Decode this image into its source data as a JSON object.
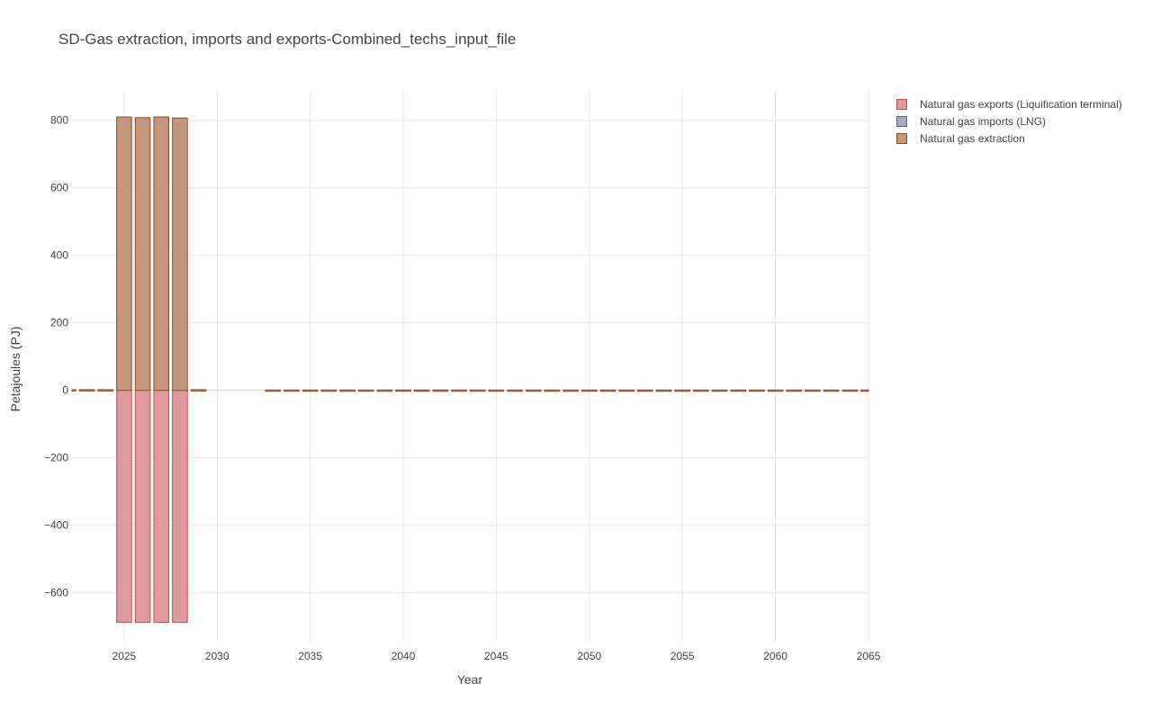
{
  "chart_data": {
    "type": "bar",
    "title": "SD-Gas extraction, imports and exports-Combined_techs_input_file",
    "xlabel": "Year",
    "ylabel": "Petajoules (PJ)",
    "xlim": [
      2022.2,
      2065
    ],
    "ylim": [
      -745,
      890
    ],
    "x_ticks": [
      "2025",
      "2030",
      "2035",
      "2040",
      "2045",
      "2050",
      "2055",
      "2060",
      "2065"
    ],
    "y_ticks": [
      "−600",
      "−400",
      "−200",
      "0",
      "200",
      "400",
      "600",
      "800"
    ],
    "y_tick_values": [
      -600,
      -400,
      -200,
      0,
      200,
      400,
      600,
      800
    ],
    "x": [
      2022,
      2023,
      2024,
      2025,
      2026,
      2027,
      2028,
      2029,
      2030,
      2031,
      2032,
      2033,
      2034,
      2035,
      2036,
      2037,
      2038,
      2039,
      2040,
      2041,
      2042,
      2043,
      2044,
      2045,
      2046,
      2047,
      2048,
      2049,
      2050,
      2051,
      2052,
      2053,
      2054,
      2055,
      2056,
      2057,
      2058,
      2059,
      2060,
      2061,
      2062,
      2063,
      2064,
      2065
    ],
    "series": [
      {
        "name": "Natural gas exports (Liquification terminal)",
        "color": "#e09a9e",
        "stroke": "#c0504d",
        "values": [
          0,
          0,
          0,
          -688,
          -688,
          -688,
          -688,
          0,
          0,
          0,
          0,
          0,
          0,
          0,
          0,
          0,
          0,
          0,
          0,
          0,
          0,
          0,
          0,
          0,
          0,
          0,
          0,
          0,
          0,
          0,
          0,
          0,
          0,
          0,
          0,
          0,
          0,
          0,
          0,
          0,
          0,
          0,
          0,
          0
        ]
      },
      {
        "name": "Natural gas imports (LNG)",
        "color": "#a5aab5",
        "stroke": "#5a6478",
        "values": [
          0,
          0,
          0,
          0,
          0,
          0,
          0,
          0,
          0,
          0,
          0,
          0,
          0,
          0,
          0,
          0,
          0,
          0,
          0,
          0,
          0,
          0,
          0,
          0,
          0,
          0,
          0,
          0,
          0,
          0,
          0,
          0,
          0,
          0,
          0,
          0,
          0,
          0,
          0,
          0,
          0,
          0,
          0,
          0
        ]
      },
      {
        "name": "Natural gas extraction",
        "color": "#c4967a",
        "stroke": "#8b4a2b",
        "values": [
          2,
          2,
          2,
          810,
          808,
          810,
          807,
          2,
          0,
          0,
          0,
          1,
          1,
          1,
          1,
          1,
          1,
          1,
          1,
          1,
          1,
          1,
          1,
          1,
          1,
          1,
          1,
          1,
          1,
          1,
          1,
          1,
          1,
          1,
          1,
          1,
          1,
          1,
          1,
          1,
          1,
          1,
          1,
          1
        ]
      }
    ],
    "grid": true,
    "legend_position": "top-right"
  }
}
